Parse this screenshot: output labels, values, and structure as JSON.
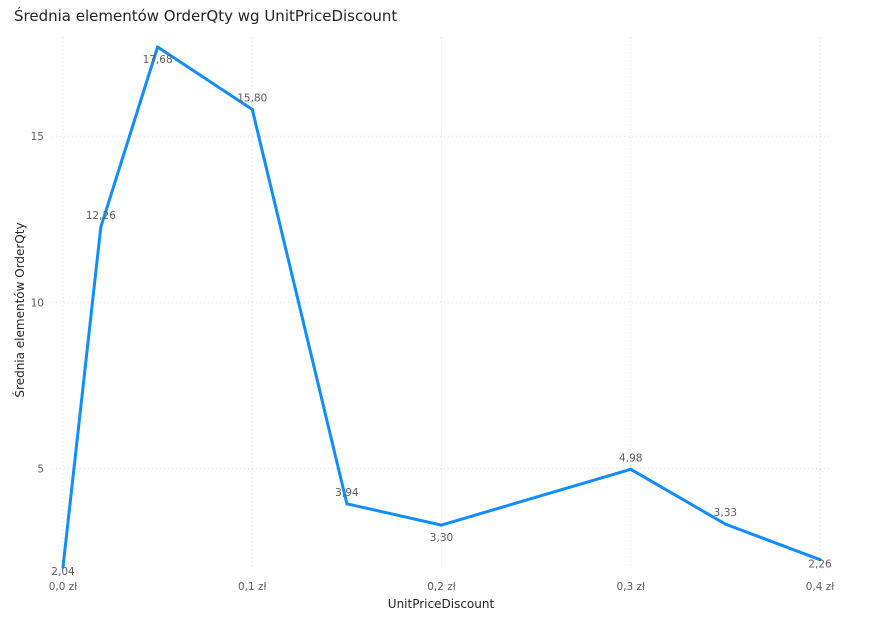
{
  "chart_data": {
    "type": "line",
    "title": "Średnia elementów OrderQty wg UnitPriceDiscount",
    "xlabel": "UnitPriceDiscount",
    "ylabel": "Średnia elementów OrderQty",
    "xlim": [
      0,
      0.4
    ],
    "ylim": [
      2.04,
      17.68
    ],
    "x_ticks": [
      {
        "value": 0.0,
        "label": "0,0 zł"
      },
      {
        "value": 0.1,
        "label": "0,1 zł"
      },
      {
        "value": 0.2,
        "label": "0,2 zł"
      },
      {
        "value": 0.3,
        "label": "0,3 zł"
      },
      {
        "value": 0.4,
        "label": "0,4 zł"
      }
    ],
    "y_ticks": [
      {
        "value": 5,
        "label": "5"
      },
      {
        "value": 10,
        "label": "10"
      },
      {
        "value": 15,
        "label": "15"
      }
    ],
    "grid": true,
    "series": [
      {
        "color": "#118DFF",
        "points": [
          {
            "x": 0.0,
            "y": 2.04,
            "label": "2,04"
          },
          {
            "x": 0.02,
            "y": 12.26,
            "label": "12,26"
          },
          {
            "x": 0.05,
            "y": 17.68,
            "label": "17,68"
          },
          {
            "x": 0.1,
            "y": 15.8,
            "label": "15,80"
          },
          {
            "x": 0.15,
            "y": 3.94,
            "label": "3,94"
          },
          {
            "x": 0.2,
            "y": 3.3,
            "label": "3,30"
          },
          {
            "x": 0.3,
            "y": 4.98,
            "label": "4,98"
          },
          {
            "x": 0.35,
            "y": 3.33,
            "label": "3,33"
          },
          {
            "x": 0.4,
            "y": 2.26,
            "label": "2,26"
          }
        ]
      }
    ]
  }
}
